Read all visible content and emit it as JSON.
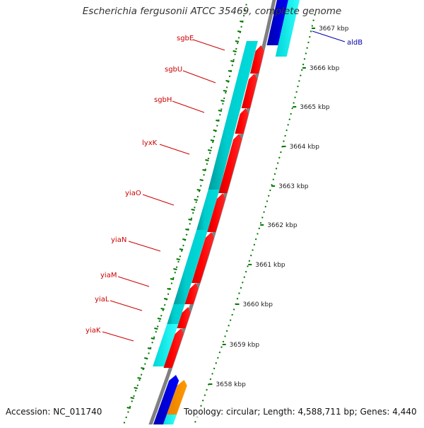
{
  "title": "Escherichia fergusonii ATCC 35469, complete genome",
  "footer": {
    "accession": "Accession: NC_011740",
    "stats": "Topology: circular; Length: 4,588,711 bp; Genes: 4,440"
  },
  "colors": {
    "forward_cds": "#00cccc",
    "forward_cds_light": "#00ffff",
    "reverse_cds": "#ff0000",
    "blue_cds": "#0000ff",
    "orange_cds": "#ff9900",
    "backbone": "#808080",
    "ticks": "#007700",
    "gene_label_red": "#cc0000",
    "gene_label_blue": "#0000aa"
  },
  "ticks": [
    "3658 kbp",
    "3659 kbp",
    "3660 kbp",
    "3661 kbp",
    "3662 kbp",
    "3663 kbp",
    "3664 kbp",
    "3665 kbp",
    "3666 kbp",
    "3667 kbp"
  ],
  "gene_labels": [
    {
      "name": "sgbE",
      "side": "left"
    },
    {
      "name": "sgbU",
      "side": "left"
    },
    {
      "name": "sgbH",
      "side": "left"
    },
    {
      "name": "lyxK",
      "side": "left"
    },
    {
      "name": "yiaO",
      "side": "left"
    },
    {
      "name": "yiaN",
      "side": "left"
    },
    {
      "name": "yiaM",
      "side": "left"
    },
    {
      "name": "yiaL",
      "side": "left"
    },
    {
      "name": "yiaK",
      "side": "left"
    },
    {
      "name": "aldB",
      "side": "right"
    }
  ]
}
